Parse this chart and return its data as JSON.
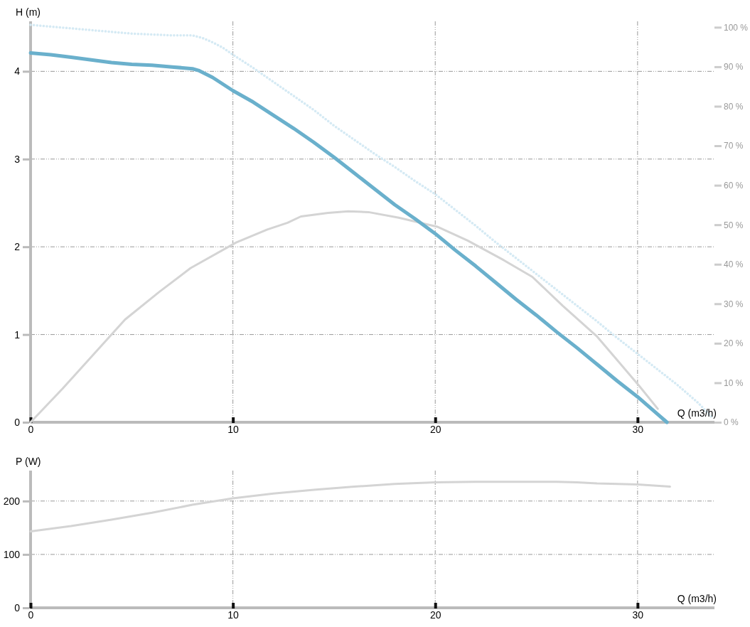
{
  "chart_data": [
    {
      "type": "line",
      "ylabel": "H (m)",
      "xlabel": "Q (m3/h)",
      "xlim": [
        0,
        33.8
      ],
      "xticks": [
        0,
        10,
        20,
        30
      ],
      "ylim": [
        0,
        4.57
      ],
      "yticks": [
        0,
        1,
        2,
        3,
        4
      ],
      "y2lim": [
        0,
        101.5
      ],
      "y2ticks": [
        {
          "value": 0,
          "label": "0 %"
        },
        {
          "value": 10,
          "label": "10 %"
        },
        {
          "value": 20,
          "label": "20 %"
        },
        {
          "value": 30,
          "label": "30 %"
        },
        {
          "value": 40,
          "label": "40 %"
        },
        {
          "value": 50,
          "label": "50 %"
        },
        {
          "value": 60,
          "label": "60 %"
        },
        {
          "value": 70,
          "label": "70 %"
        },
        {
          "value": 80,
          "label": "80 %"
        },
        {
          "value": 90,
          "label": "90 %"
        },
        {
          "value": 100,
          "label": "100 %"
        }
      ],
      "grid": true,
      "series": [
        {
          "color": "#d5eaf4",
          "line_style": "dotted",
          "x": [
            0,
            1,
            2,
            3,
            4,
            5,
            6,
            7,
            8,
            8.5,
            9,
            9.5,
            10,
            11,
            12,
            13,
            14,
            15,
            16,
            17,
            18,
            19,
            20,
            21,
            22,
            23,
            24,
            25,
            26,
            27,
            28,
            29,
            30,
            31,
            32,
            33,
            33.7
          ],
          "values": [
            4.53,
            4.51,
            4.49,
            4.47,
            4.45,
            4.43,
            4.42,
            4.41,
            4.41,
            4.38,
            4.33,
            4.27,
            4.19,
            4.04,
            3.88,
            3.72,
            3.56,
            3.38,
            3.22,
            3.06,
            2.91,
            2.75,
            2.6,
            2.42,
            2.24,
            2.05,
            1.87,
            1.69,
            1.51,
            1.33,
            1.15,
            0.96,
            0.78,
            0.6,
            0.42,
            0.22,
            0.05
          ]
        },
        {
          "color": "#d4d4d4",
          "axis": "y2",
          "x": [
            0,
            1.58,
            4.67,
            6.36,
            7.9,
            10.16,
            11.7,
            12.7,
            13.36,
            14.7,
            15.7,
            16.7,
            18.2,
            20.1,
            21.6,
            23.4,
            24.8,
            26.3,
            28,
            29,
            30.1,
            31
          ],
          "values": [
            0,
            8.5,
            26,
            33,
            39,
            45.5,
            48.8,
            50.5,
            52.1,
            53,
            53.4,
            53.2,
            51.8,
            49.5,
            46,
            41,
            36.8,
            29.5,
            21.7,
            15.7,
            9.1,
            3.4
          ]
        },
        {
          "color": "#6ab0cc",
          "line_style": "solid",
          "x": [
            0,
            1,
            2,
            3,
            4,
            5,
            6,
            7,
            8,
            8.3,
            9,
            10,
            11,
            12,
            13,
            14,
            15,
            16,
            17,
            18,
            19,
            20,
            21,
            22,
            23,
            24,
            25,
            26,
            27,
            28,
            29,
            30,
            31,
            31.45
          ],
          "values": [
            4.21,
            4.19,
            4.16,
            4.13,
            4.1,
            4.08,
            4.07,
            4.05,
            4.03,
            4.01,
            3.93,
            3.78,
            3.65,
            3.5,
            3.35,
            3.19,
            3.02,
            2.84,
            2.66,
            2.48,
            2.32,
            2.15,
            1.96,
            1.78,
            1.59,
            1.4,
            1.22,
            1.03,
            0.85,
            0.66,
            0.47,
            0.29,
            0.09,
            0
          ]
        }
      ]
    },
    {
      "type": "line",
      "ylabel": "P (W)",
      "xlabel": "Q (m3/h)",
      "xlim": [
        0,
        33.8
      ],
      "xticks": [
        0,
        10,
        20,
        30
      ],
      "ylim": [
        0,
        257
      ],
      "yticks": [
        0,
        100,
        200
      ],
      "grid": true,
      "series": [
        {
          "color": "#d4d4d4",
          "x": [
            0,
            2,
            4,
            6,
            8,
            10,
            12,
            14,
            16,
            18,
            20,
            22,
            24,
            26,
            27,
            28,
            30,
            31.6
          ],
          "values": [
            143,
            153,
            165,
            178,
            193,
            205,
            214,
            221,
            227,
            232,
            235,
            236,
            236,
            236,
            235,
            233,
            231,
            227
          ]
        }
      ]
    }
  ]
}
